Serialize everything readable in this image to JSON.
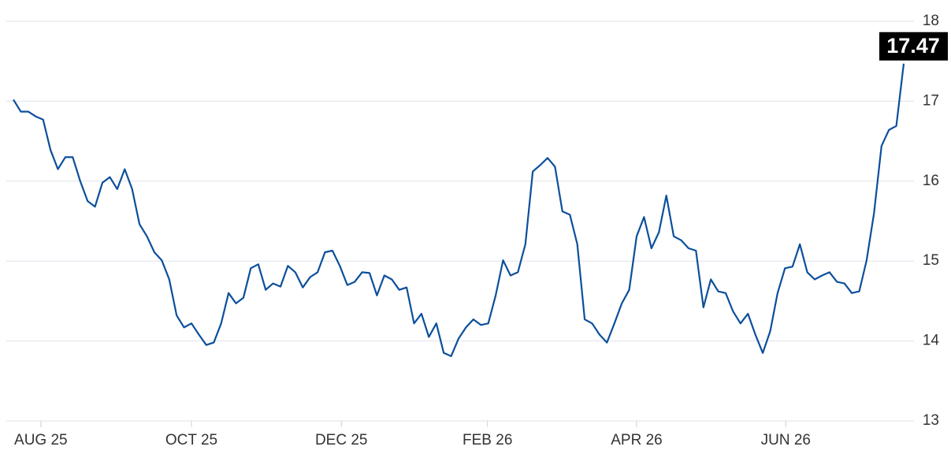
{
  "chart_data": {
    "type": "line",
    "color": "#0b4f9c",
    "values": [
      17.02,
      16.87,
      16.87,
      16.81,
      16.77,
      16.39,
      16.15,
      16.3,
      16.3,
      16.0,
      15.75,
      15.68,
      15.98,
      16.05,
      15.9,
      16.15,
      15.9,
      15.46,
      15.31,
      15.11,
      15.01,
      14.77,
      14.32,
      14.17,
      14.22,
      14.08,
      13.95,
      13.98,
      14.22,
      14.6,
      14.47,
      14.54,
      14.91,
      14.96,
      14.64,
      14.72,
      14.68,
      14.94,
      14.86,
      14.67,
      14.8,
      14.86,
      15.11,
      15.13,
      14.94,
      14.7,
      14.74,
      14.86,
      14.85,
      14.57,
      14.82,
      14.77,
      14.64,
      14.67,
      14.22,
      14.34,
      14.05,
      14.22,
      13.85,
      13.81,
      14.03,
      14.17,
      14.27,
      14.2,
      14.22,
      14.57,
      15.01,
      14.82,
      14.86,
      15.21,
      16.12,
      16.2,
      16.29,
      16.18,
      15.62,
      15.58,
      15.21,
      14.27,
      14.22,
      14.08,
      13.98,
      14.22,
      14.47,
      14.64,
      15.31,
      15.55,
      15.16,
      15.36,
      15.82,
      15.31,
      15.26,
      15.16,
      15.13,
      14.42,
      14.77,
      14.62,
      14.6,
      14.37,
      14.22,
      14.34,
      14.08,
      13.85,
      14.12,
      14.6,
      14.91,
      14.93,
      15.21,
      14.86,
      14.77,
      14.82,
      14.86,
      14.74,
      14.72,
      14.6,
      14.62,
      15.01,
      15.6,
      16.44,
      16.64,
      16.69,
      17.47
    ],
    "xlim": [
      0,
      120
    ],
    "xticks": [
      {
        "value": 3.7,
        "label": "AUG 25"
      },
      {
        "value": 24,
        "label": "OCT 25"
      },
      {
        "value": 44.2,
        "label": "DEC 25"
      },
      {
        "value": 63.9,
        "label": "FEB 26"
      },
      {
        "value": 84,
        "label": "APR 26"
      },
      {
        "value": 104.1,
        "label": "JUN 26"
      }
    ],
    "ylim": [
      13,
      18
    ],
    "yticks": [
      13,
      14,
      15,
      16,
      17,
      18
    ],
    "grid": true
  }
}
